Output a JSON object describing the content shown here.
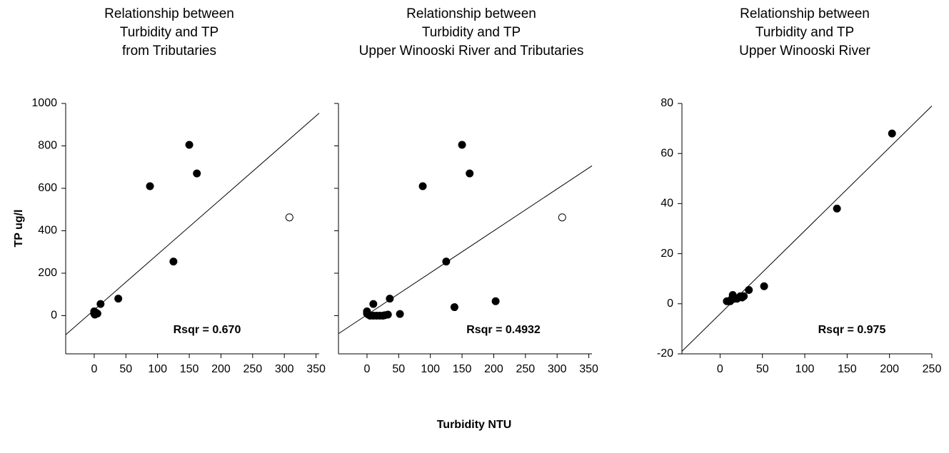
{
  "xlabel": "Turbidity NTU",
  "ylabel": "TP ug/l",
  "chart_data": [
    {
      "type": "scatter",
      "title": [
        "Relationship between",
        "Turbidity and TP",
        "from Tributaries"
      ],
      "xlim": [
        -45,
        355
      ],
      "xticks": [
        0,
        50,
        100,
        150,
        200,
        250,
        300,
        350
      ],
      "ylim": [
        -180,
        1000
      ],
      "yticks": [
        0,
        200,
        400,
        600,
        800,
        1000
      ],
      "show_ytick_labels": true,
      "series": [
        {
          "color": "#000000",
          "marker": "filled",
          "x": [
            0,
            0,
            2,
            5,
            1,
            10,
            38,
            88,
            125,
            150,
            162
          ],
          "values": [
            10,
            20,
            15,
            10,
            5,
            55,
            80,
            610,
            255,
            805,
            670
          ]
        },
        {
          "color": "#000000",
          "marker": "open",
          "x": [
            308
          ],
          "values": [
            463
          ]
        }
      ],
      "fit_line": {
        "x": [
          -45,
          355
        ],
        "values": [
          -90,
          954
        ]
      },
      "annotation": "Rsqr = 0.670"
    },
    {
      "type": "scatter",
      "title": [
        "Relationship between",
        "Turbidity and TP",
        "Upper Winooski River and Tributaries"
      ],
      "xlim": [
        -45,
        355
      ],
      "xticks": [
        0,
        50,
        100,
        150,
        200,
        250,
        300,
        350
      ],
      "ylim": [
        -180,
        1000
      ],
      "yticks": [
        0,
        200,
        400,
        600,
        800,
        1000
      ],
      "show_ytick_labels": false,
      "series": [
        {
          "color": "#000000",
          "marker": "filled",
          "x": [
            0,
            0,
            2,
            5,
            10,
            15,
            20,
            25,
            28,
            33,
            52,
            10,
            36,
            88,
            125,
            138,
            150,
            162,
            203
          ],
          "values": [
            20,
            10,
            5,
            0,
            0,
            0,
            0,
            0,
            2,
            5,
            8,
            55,
            80,
            610,
            255,
            40,
            805,
            670,
            68
          ]
        },
        {
          "color": "#000000",
          "marker": "open",
          "x": [
            308
          ],
          "values": [
            463
          ]
        }
      ],
      "fit_line": {
        "x": [
          -45,
          355
        ],
        "values": [
          -85,
          706
        ]
      },
      "annotation": "Rsqr = 0.4932"
    },
    {
      "type": "scatter",
      "title": [
        "Relationship between",
        "Turbidity and TP",
        "Upper Winooski River"
      ],
      "xlim": [
        -45,
        250
      ],
      "xticks": [
        0,
        50,
        100,
        150,
        200,
        250
      ],
      "ylim": [
        -20,
        80
      ],
      "yticks": [
        -20,
        0,
        20,
        40,
        60,
        80
      ],
      "show_ytick_labels": true,
      "series": [
        {
          "color": "#000000",
          "marker": "filled",
          "x": [
            8,
            10,
            12,
            14,
            15,
            17,
            20,
            24,
            26,
            28,
            34,
            52,
            138,
            203
          ],
          "values": [
            1,
            1,
            1,
            2,
            3.5,
            2,
            2,
            3,
            2.5,
            3,
            5.5,
            7,
            38,
            68
          ]
        }
      ],
      "fit_line": {
        "x": [
          -45,
          250
        ],
        "values": [
          -19,
          79
        ]
      },
      "annotation": "Rsqr = 0.975"
    }
  ]
}
